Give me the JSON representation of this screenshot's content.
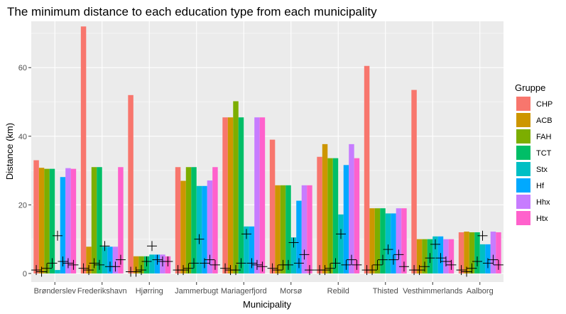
{
  "chart_data": {
    "type": "bar",
    "title": "The minimum distance to each education type from each municipality",
    "xlabel": "Municipality",
    "ylabel": "Distance (km)",
    "ylim": [
      -2.5,
      73.5
    ],
    "yticks": [
      0,
      20,
      40,
      60
    ],
    "grid": true,
    "legend": {
      "title": "Gruppe",
      "placement": "right"
    },
    "categories": [
      "Brønderslev",
      "Frederikshavn",
      "Hjørring",
      "Jammerbugt",
      "Mariagerfjord",
      "Morsø",
      "Rebild",
      "Thisted",
      "Vesthimmerlands",
      "Aalborg"
    ],
    "series": [
      {
        "name": "CHP",
        "color": "#F8766D",
        "values": [
          33,
          72,
          52,
          31,
          45.5,
          39,
          34,
          60.5,
          53.5,
          12
        ]
      },
      {
        "name": "ACB",
        "color": "#CD9600",
        "values": [
          30.8,
          7.8,
          5,
          27,
          45.5,
          25.7,
          37.7,
          19,
          10,
          12.2
        ]
      },
      {
        "name": "FAH",
        "color": "#7CAE00",
        "values": [
          30.5,
          31,
          5,
          31,
          50.2,
          25.7,
          33.6,
          19,
          10,
          12
        ]
      },
      {
        "name": "TCT",
        "color": "#00BE67",
        "values": [
          30.5,
          31,
          5,
          31,
          45.5,
          25.7,
          33.6,
          19,
          10,
          12
        ]
      },
      {
        "name": "Stx",
        "color": "#00BFC4",
        "values": [
          1,
          7.8,
          5.5,
          25.5,
          13.7,
          10.5,
          17.2,
          17.5,
          10.8,
          8.5
        ]
      },
      {
        "name": "Hf",
        "color": "#00A9FF",
        "values": [
          28.1,
          7.8,
          5.5,
          25.5,
          13.7,
          21.2,
          31.6,
          17.5,
          10.8,
          8.5
        ]
      },
      {
        "name": "Hhx",
        "color": "#C77CFF",
        "values": [
          30.7,
          7.8,
          5.5,
          27.1,
          45.5,
          25.7,
          37.7,
          19,
          10,
          12.2
        ]
      },
      {
        "name": "Htx",
        "color": "#FF61CC",
        "values": [
          30.5,
          31,
          5,
          31,
          45.5,
          25.7,
          33.6,
          19,
          10,
          12
        ]
      }
    ],
    "points": [
      [
        1,
        0.5,
        1.5,
        3,
        11,
        3.5,
        3,
        2.5
      ],
      [
        1.5,
        1,
        3,
        2.5,
        8,
        2,
        2,
        4
      ],
      [
        0.5,
        0.5,
        1,
        3.5,
        8,
        4,
        3.5,
        3.5
      ],
      [
        1,
        1,
        1.5,
        3,
        10,
        3,
        4,
        2.5
      ],
      [
        1.5,
        1,
        1,
        3,
        11.5,
        3,
        2.5,
        2
      ],
      [
        1.5,
        1,
        2.5,
        2.5,
        9,
        3,
        5.5,
        1
      ],
      [
        1,
        1,
        1.5,
        3,
        11.5,
        2.5,
        4,
        2.5
      ],
      [
        1,
        1,
        2.5,
        4,
        7,
        4,
        5.5,
        2
      ],
      [
        1,
        1,
        2,
        4.5,
        8.5,
        4.5,
        3.5,
        2.5
      ],
      [
        1,
        0.5,
        1.5,
        3.5,
        11,
        3,
        4,
        2.5
      ]
    ]
  }
}
